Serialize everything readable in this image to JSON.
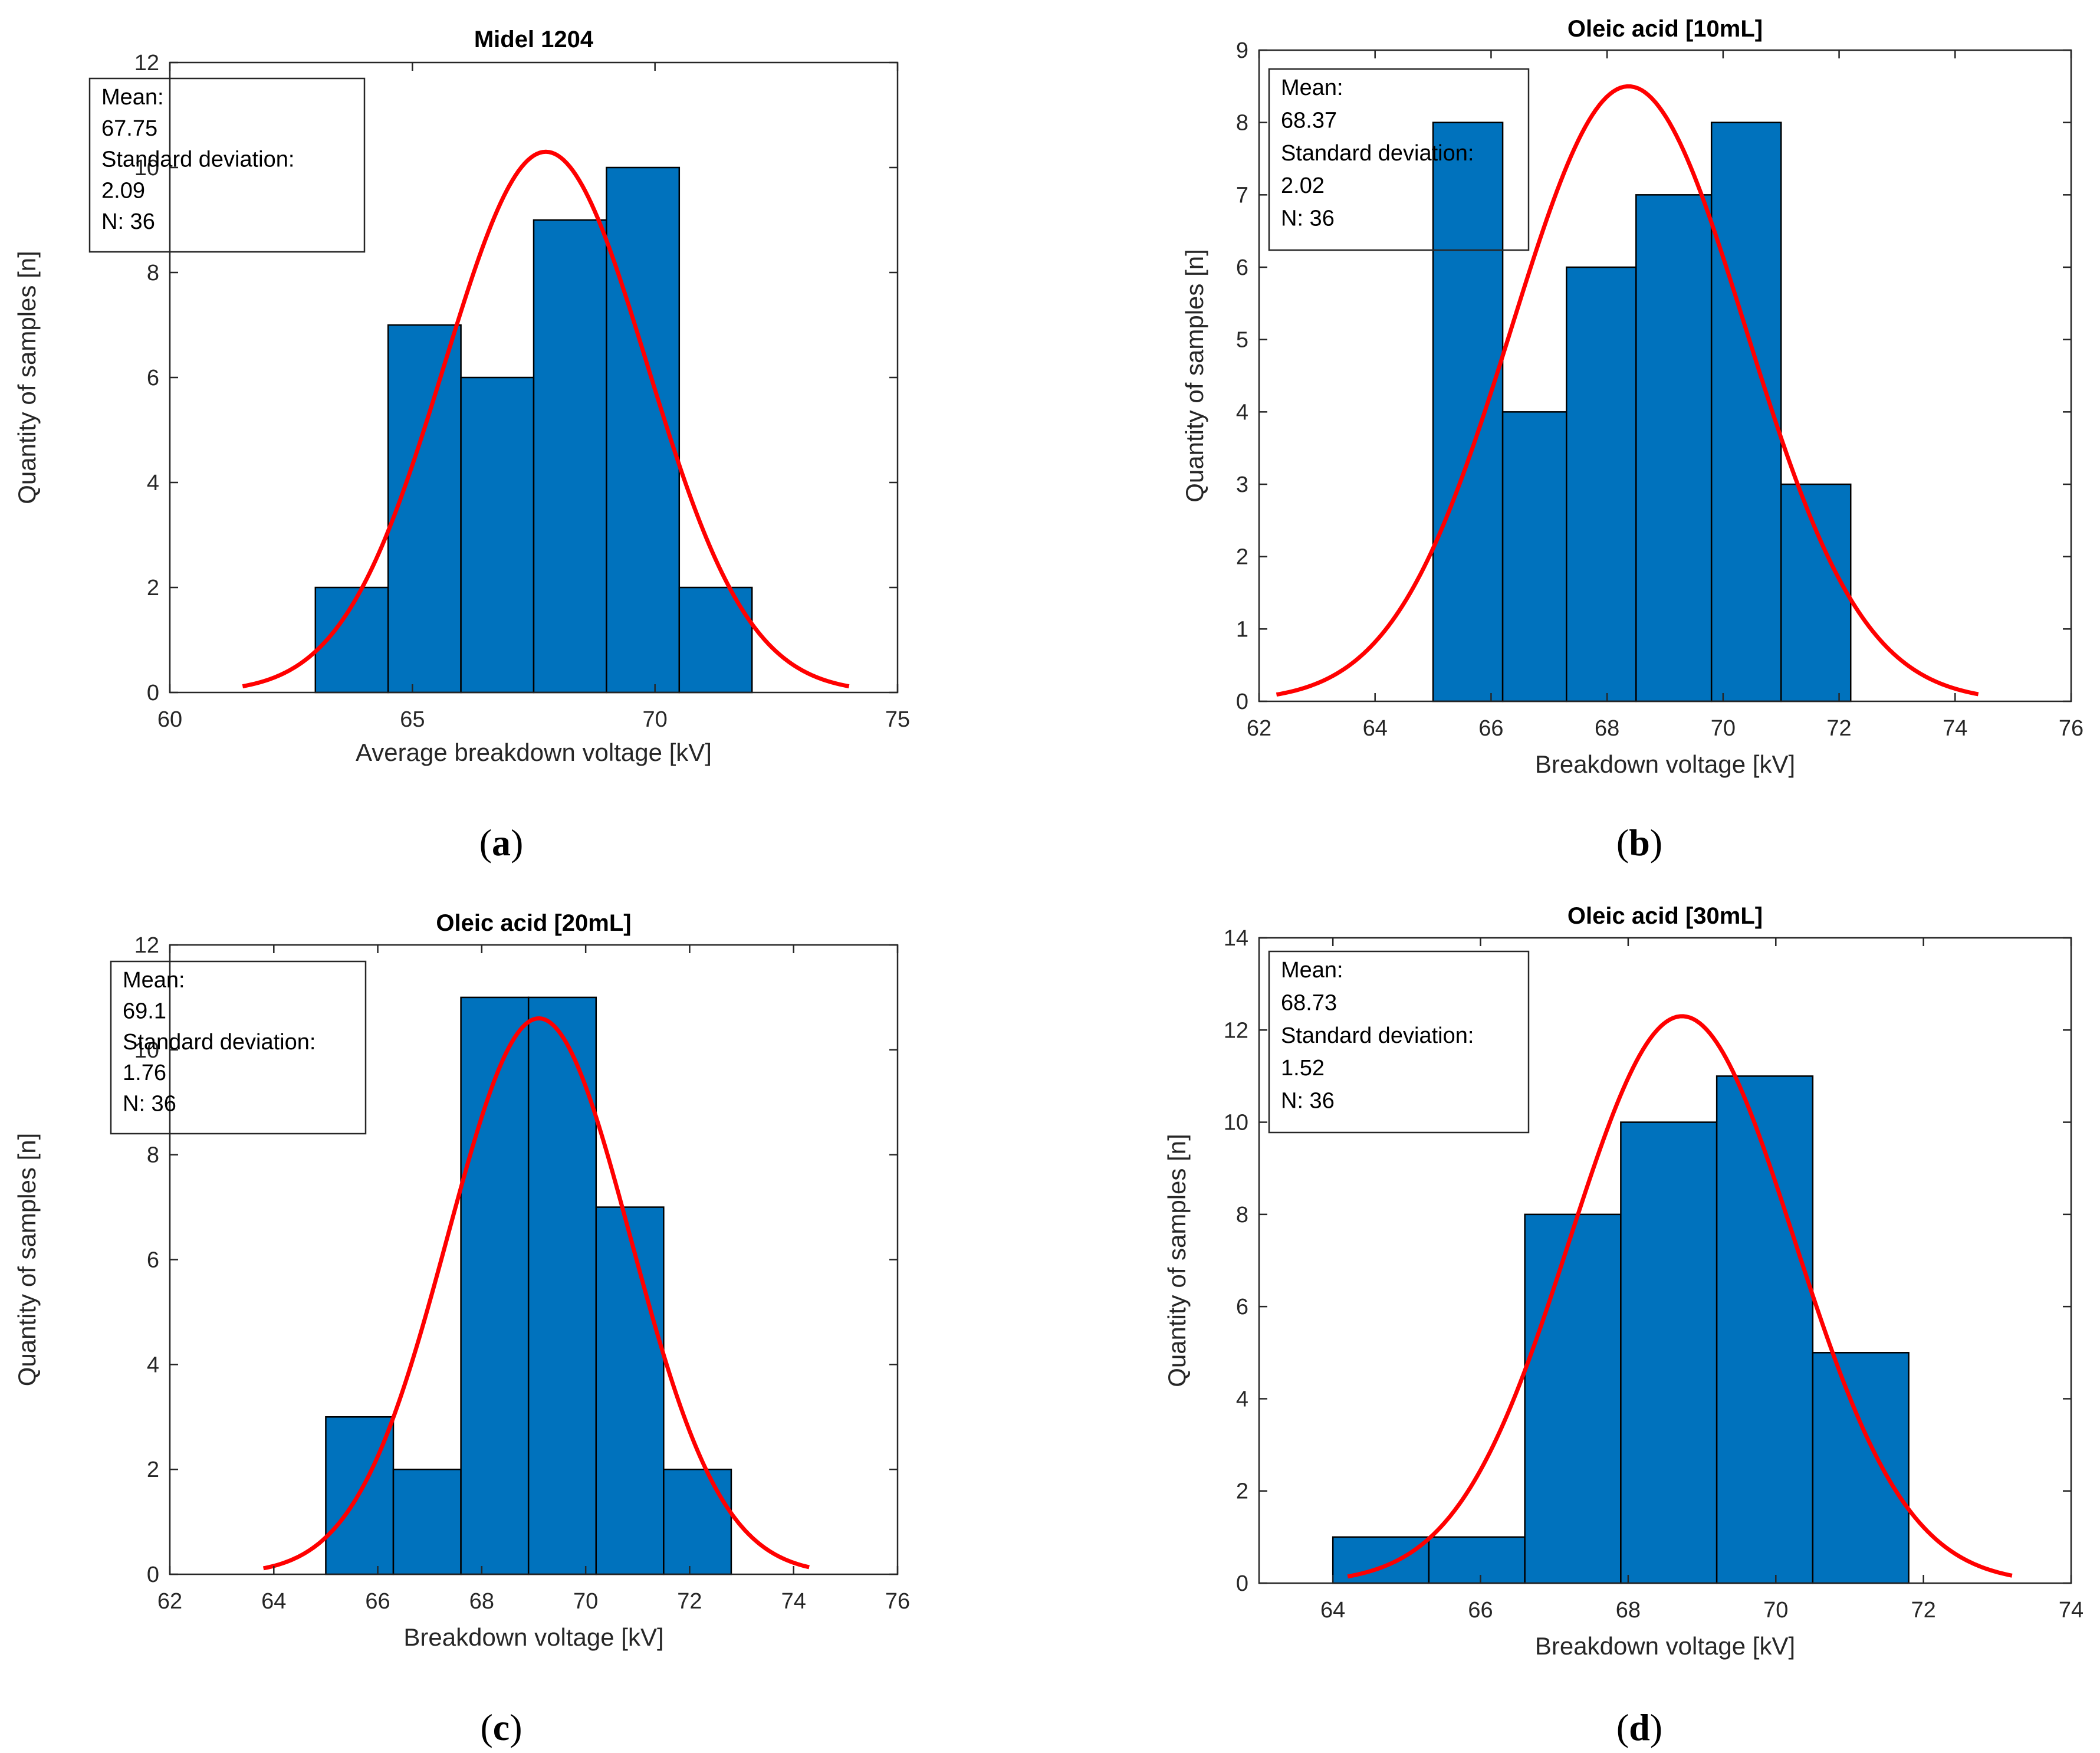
{
  "colors": {
    "bar_fill": "#0072BD",
    "bar_edge": "#000000",
    "fit_line": "#FF0000",
    "axis": "#262626"
  },
  "chart_data": [
    {
      "type": "bar",
      "title": "Midel 1204",
      "xlabel": "Average breakdown voltage [kV]",
      "ylabel": "Quantity of samples [n]",
      "caption_letter": "a",
      "xlim": [
        60,
        75
      ],
      "ylim": [
        0,
        12
      ],
      "xticks": [
        60,
        65,
        70,
        75
      ],
      "yticks": [
        0,
        2,
        4,
        6,
        8,
        10,
        12
      ],
      "bin_edges": [
        63,
        64.5,
        66,
        67.5,
        69,
        70.5,
        72
      ],
      "counts": [
        2,
        7,
        6,
        9,
        10,
        2
      ],
      "fit": {
        "mean": 67.75,
        "std": 2.09,
        "peak": 10.3,
        "x_range": [
          61.5,
          74
        ]
      },
      "stats_lines": [
        "Mean:",
        "67.75",
        "Standard deviation:",
        "2.09",
        "N: 36"
      ],
      "legend_position": "top-left"
    },
    {
      "type": "bar",
      "title": "Oleic acid [10mL]",
      "xlabel": "Breakdown voltage [kV]",
      "ylabel": "Quantity of samples [n]",
      "caption_letter": "b",
      "xlim": [
        62,
        76
      ],
      "ylim": [
        0,
        9
      ],
      "xticks": [
        62,
        64,
        66,
        68,
        70,
        72,
        74,
        76
      ],
      "yticks": [
        0,
        1,
        2,
        3,
        4,
        5,
        6,
        7,
        8,
        9
      ],
      "bin_edges": [
        65,
        66.2,
        67.3,
        68.5,
        69.8,
        71,
        72.2
      ],
      "counts": [
        8,
        4,
        6,
        7,
        8,
        3
      ],
      "fit": {
        "mean": 68.37,
        "std": 2.02,
        "peak": 8.5,
        "x_range": [
          62.3,
          74.4
        ]
      },
      "stats_lines": [
        "Mean:",
        "68.37",
        "Standard deviation:",
        "2.02",
        "N: 36"
      ],
      "legend_position": "top-left"
    },
    {
      "type": "bar",
      "title": "Oleic acid [20mL]",
      "xlabel": "Breakdown voltage [kV]",
      "ylabel": "Quantity of samples [n]",
      "caption_letter": "c",
      "xlim": [
        62,
        76
      ],
      "ylim": [
        0,
        12
      ],
      "xticks": [
        62,
        64,
        66,
        68,
        70,
        72,
        74,
        76
      ],
      "yticks": [
        0,
        2,
        4,
        6,
        8,
        10,
        12
      ],
      "bin_edges": [
        65,
        66.3,
        67.6,
        68.9,
        70.2,
        71.5,
        72.8
      ],
      "counts": [
        3,
        2,
        11,
        11,
        7,
        2
      ],
      "fit": {
        "mean": 69.1,
        "std": 1.76,
        "peak": 10.6,
        "x_range": [
          63.8,
          74.3
        ]
      },
      "stats_lines": [
        "Mean:",
        "69.1",
        "Standard deviation:",
        "1.76",
        "N: 36"
      ],
      "legend_position": "top-left"
    },
    {
      "type": "bar",
      "title": "Oleic acid [30mL]",
      "xlabel": "Breakdown voltage [kV]",
      "ylabel": "Quantity of samples [n]",
      "caption_letter": "d",
      "xlim": [
        63,
        74
      ],
      "ylim": [
        0,
        14
      ],
      "xticks": [
        64,
        66,
        68,
        70,
        72,
        74
      ],
      "yticks": [
        0,
        2,
        4,
        6,
        8,
        10,
        12,
        14
      ],
      "bin_edges": [
        64,
        65.3,
        66.6,
        67.9,
        69.2,
        70.5,
        71.8
      ],
      "counts": [
        1,
        1,
        8,
        10,
        11,
        5
      ],
      "fit": {
        "mean": 68.73,
        "std": 1.52,
        "peak": 12.3,
        "x_range": [
          64.2,
          73.2
        ]
      },
      "stats_lines": [
        "Mean:",
        "68.73",
        "Standard deviation:",
        "1.52",
        "N: 36"
      ],
      "legend_position": "top-left"
    }
  ]
}
